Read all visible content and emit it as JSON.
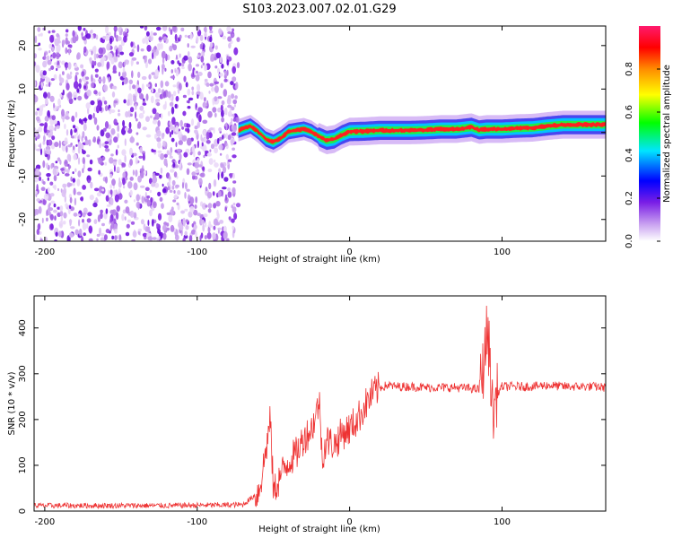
{
  "title": "S103.2023.007.02.01.G29",
  "chart_data": [
    {
      "type": "heatmap",
      "xlabel": "Height of straight line (km)",
      "ylabel": "Frequency (Hz)",
      "xlim": [
        -207,
        168
      ],
      "ylim": [
        -25,
        24.5
      ],
      "x_ticks": [
        -200,
        -100,
        0,
        100
      ],
      "x_tick_labels": [
        "-200",
        "-100",
        "0",
        "100"
      ],
      "y_ticks": [
        -20,
        -10,
        0,
        10,
        20
      ],
      "y_tick_labels": [
        "-20",
        "-10",
        "0",
        "10",
        "20"
      ],
      "colormap": [
        "#e0c8f4",
        "#8a2be2",
        "#0000ff",
        "#00ffff",
        "#00ff00",
        "#ffff00",
        "#ffa500",
        "#ff0000",
        "#ff1a66"
      ],
      "noise_region_x": [
        -207,
        -73
      ],
      "signal_line": {
        "x": [
          -73,
          -65,
          -60,
          -55,
          -50,
          -45,
          -40,
          -35,
          -30,
          -25,
          -20,
          -15,
          -10,
          -5,
          0,
          10,
          20,
          30,
          40,
          50,
          60,
          70,
          80,
          85,
          90,
          100,
          110,
          120,
          130,
          140,
          150,
          160,
          168
        ],
        "y": [
          0.5,
          1.5,
          0.2,
          -1.5,
          -2.2,
          -1.2,
          0.2,
          0.5,
          0.8,
          0.2,
          -1.0,
          -1.8,
          -1.5,
          -0.5,
          0.2,
          0.3,
          0.5,
          0.5,
          0.5,
          0.6,
          0.8,
          0.8,
          1.2,
          0.6,
          0.8,
          0.8,
          1.0,
          1.1,
          1.5,
          1.8,
          1.8,
          1.8,
          1.8
        ]
      },
      "colorbar": {
        "label": "Normalized spectral amplitude",
        "range": [
          0,
          1
        ],
        "ticks": [
          0.0,
          0.2,
          0.4,
          0.6,
          0.8
        ],
        "tick_labels": [
          "0.0",
          "0.2",
          "0.4",
          "0.6",
          "0.8"
        ]
      }
    },
    {
      "type": "line",
      "xlabel": "Height of straight line (km)",
      "ylabel": "SNR (10 * v/v)",
      "xlim": [
        -207,
        168
      ],
      "ylim": [
        0,
        470
      ],
      "x_ticks": [
        -200,
        -100,
        0,
        100
      ],
      "x_tick_labels": [
        "-200",
        "-100",
        "0",
        "100"
      ],
      "y_ticks": [
        0,
        100,
        200,
        300,
        400
      ],
      "y_tick_labels": [
        "0",
        "100",
        "200",
        "300",
        "400"
      ],
      "series": [
        {
          "color": "#ee3333",
          "x": [
            -207,
            -180,
            -150,
            -120,
            -90,
            -70,
            -60,
            -58,
            -55,
            -52,
            -50,
            -45,
            -40,
            -35,
            -30,
            -25,
            -22,
            -20,
            -18,
            -15,
            -10,
            -5,
            0,
            5,
            10,
            15,
            20,
            25,
            30,
            40,
            50,
            60,
            70,
            80,
            85,
            88,
            90,
            92,
            94,
            96,
            100,
            110,
            120,
            130,
            140,
            150,
            160,
            168
          ],
          "y": [
            12,
            12,
            12,
            12,
            13,
            14,
            40,
            70,
            130,
            200,
            40,
            80,
            110,
            125,
            160,
            180,
            210,
            245,
            120,
            155,
            145,
            170,
            180,
            200,
            230,
            255,
            270,
            275,
            272,
            272,
            270,
            270,
            270,
            268,
            265,
            320,
            390,
            340,
            200,
            250,
            272,
            272,
            272,
            275,
            272,
            272,
            272,
            270
          ]
        }
      ]
    }
  ]
}
